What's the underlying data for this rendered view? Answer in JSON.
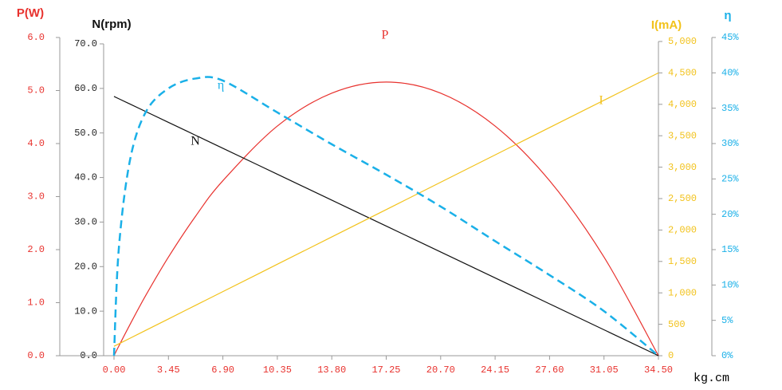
{
  "chart_data": {
    "type": "line",
    "x": [
      0,
      0.3,
      1,
      2,
      3.45,
      5.17,
      6.9,
      10.35,
      13.8,
      17.25,
      20.7,
      24.15,
      27.6,
      31.05,
      34.5
    ],
    "xlim": [
      0,
      34.5
    ],
    "xticks": [
      {
        "value": 0,
        "label": "0.00"
      },
      {
        "value": 3.45,
        "label": "3.45"
      },
      {
        "value": 6.9,
        "label": "6.90"
      },
      {
        "value": 10.35,
        "label": "10.35"
      },
      {
        "value": 13.8,
        "label": "13.80"
      },
      {
        "value": 17.25,
        "label": "17.25"
      },
      {
        "value": 20.7,
        "label": "20.70"
      },
      {
        "value": 24.15,
        "label": "24.15"
      },
      {
        "value": 27.6,
        "label": "27.60"
      },
      {
        "value": 31.05,
        "label": "31.05"
      },
      {
        "value": 34.5,
        "label": "34.50"
      }
    ],
    "x_label": "kg.cm",
    "y_axes": [
      {
        "title": "P(W)",
        "color": "#e8322e",
        "lim": [
          0,
          6
        ],
        "ticks": [
          {
            "value": 0,
            "label": "0.0"
          },
          {
            "value": 1,
            "label": "1.0"
          },
          {
            "value": 2,
            "label": "2.0"
          },
          {
            "value": 3,
            "label": "3.0"
          },
          {
            "value": 4,
            "label": "4.0"
          },
          {
            "value": 5,
            "label": "5.0"
          },
          {
            "value": 6,
            "label": "6.0"
          }
        ]
      },
      {
        "title": "N(rpm)",
        "color": "#111111",
        "lim": [
          0,
          70
        ],
        "ticks": [
          {
            "value": 0,
            "label": "0.0"
          },
          {
            "value": 10,
            "label": "10.0"
          },
          {
            "value": 20,
            "label": "20.0"
          },
          {
            "value": 30,
            "label": "30.0"
          },
          {
            "value": 40,
            "label": "40.0"
          },
          {
            "value": 50,
            "label": "50.0"
          },
          {
            "value": 60,
            "label": "60.0"
          },
          {
            "value": 70,
            "label": "70.0"
          }
        ]
      },
      {
        "title": "I(mA)",
        "color": "#f2c21b",
        "lim": [
          0,
          5000
        ],
        "ticks": [
          0,
          500,
          {
            "value": 1000,
            "label": "1,000"
          },
          {
            "value": 1500,
            "label": "1,500"
          },
          {
            "value": 2000,
            "label": "2,000"
          },
          {
            "value": 2500,
            "label": "2,500"
          },
          {
            "value": 3000,
            "label": "3,000"
          },
          {
            "value": 3500,
            "label": "3,500"
          },
          {
            "value": 4000,
            "label": "4,000"
          },
          {
            "value": 4500,
            "label": "4,500"
          },
          {
            "value": 5000,
            "label": "5,000"
          }
        ]
      },
      {
        "title": "η",
        "color": "#1ab0e8",
        "lim": [
          0,
          45
        ],
        "ticks": [
          {
            "value": 0,
            "label": "0%"
          },
          {
            "value": 5,
            "label": "5%"
          },
          {
            "value": 10,
            "label": "10%"
          },
          {
            "value": 15,
            "label": "15%"
          },
          {
            "value": 20,
            "label": "20%"
          },
          {
            "value": 25,
            "label": "25%"
          },
          {
            "value": 30,
            "label": "30%"
          },
          {
            "value": 35,
            "label": "35%"
          },
          {
            "value": 40,
            "label": "40%"
          },
          {
            "value": 45,
            "label": "45%"
          }
        ]
      }
    ],
    "series": [
      {
        "name": "P",
        "color": "#e8322e",
        "axis": 0,
        "values": [
          0,
          0.178,
          0.58,
          1.13,
          1.86,
          2.63,
          3.3,
          4.33,
          4.95,
          5.16,
          4.95,
          4.33,
          3.3,
          1.86,
          0
        ]
      },
      {
        "name": "N",
        "color": "#111111",
        "axis": 1,
        "values": [
          58.2,
          57.69,
          56.51,
          54.83,
          52.38,
          49.48,
          46.56,
          40.74,
          34.92,
          29.1,
          23.28,
          17.46,
          11.64,
          5.82,
          0
        ]
      },
      {
        "name": "I",
        "color": "#f2c21b",
        "axis": 2,
        "values": [
          150,
          188,
          276,
          402,
          585,
          802,
          1020,
          1455,
          1890,
          2325,
          2760,
          3195,
          3630,
          4065,
          4500
        ]
      },
      {
        "name": "η",
        "color": "#1ab0e8",
        "axis": 3,
        "dashed": true,
        "values": [
          0,
          15,
          27.5,
          34.4,
          37.8,
          39.2,
          38.9,
          34.4,
          29.9,
          25.6,
          21.1,
          16.2,
          11.4,
          6.3,
          0
        ]
      }
    ]
  }
}
